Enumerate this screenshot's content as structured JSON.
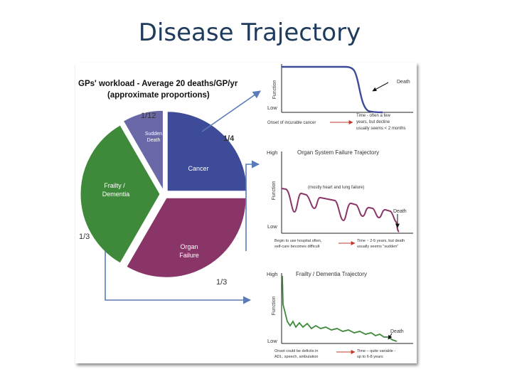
{
  "slide": {
    "title": "Disease Trajectory"
  },
  "pie": {
    "heading_line1": "GPs' workload - Average 20 deaths/GP/yr",
    "heading_line2": "(approximate proportions)",
    "slices": [
      {
        "label_line1": "Sudden",
        "label_line2": "Death",
        "fraction": "1/12",
        "value": 0.0833,
        "color": "#6b68a8"
      },
      {
        "label_line1": "Cancer",
        "label_line2": "",
        "fraction": "1/4",
        "value": 0.25,
        "color": "#3e4b99"
      },
      {
        "label_line1": "Organ",
        "label_line2": "Failure",
        "fraction": "1/3",
        "value": 0.3333,
        "color": "#8a3568"
      },
      {
        "label_line1": "Frailty /",
        "label_line2": "Dementia",
        "fraction": "1/3",
        "value": 0.3333,
        "color": "#3f8a3a"
      }
    ]
  },
  "graphs": {
    "cancer": {
      "y_axis": "Function",
      "high": "",
      "low": "Low",
      "death": "Death",
      "onset": "Onset of incurable cancer",
      "time_line1": "Time - often a few",
      "time_line2": "years, but decline",
      "time_line3": "usually seems < 2 months",
      "color": "#3e4b99"
    },
    "organ": {
      "title": "Organ System Failure Trajectory",
      "y_axis": "Function",
      "high": "High",
      "low": "Low",
      "death": "Death",
      "note": "(mostly heart and lung failure)",
      "onset_line1": "Begin to use hospital often,",
      "onset_line2": "self-care becomes difficult",
      "time_line1": "Time ~ 2-5 years, but death",
      "time_line2": "usually seems \"sudden\"",
      "color": "#8a3568"
    },
    "frailty": {
      "title": "Frailty / Dementia Trajectory",
      "y_axis": "Function",
      "high": "High",
      "low": "Low",
      "death": "Death",
      "onset_line1": "Onset could be deficits in",
      "onset_line2": "ADL, speech, ambulation",
      "time_line1": "Time – quite variable -",
      "time_line2": "up to 6-8 years",
      "color": "#3f8a3a"
    }
  },
  "colors": {
    "arrow": "#5a7bb8",
    "red_arrow": "#c0392b",
    "title": "#1f3b5c"
  }
}
